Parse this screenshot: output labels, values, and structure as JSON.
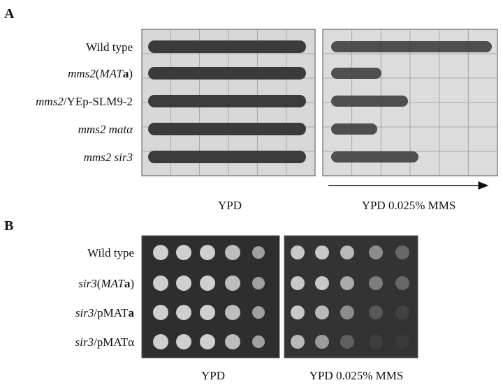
{
  "panel_a": {
    "label": "A",
    "rows": [
      [
        {
          "text": "Wild type",
          "style": "r"
        }
      ],
      [
        {
          "text": "mms2",
          "style": "i"
        },
        {
          "text": "(",
          "style": "r"
        },
        {
          "text": "MAT",
          "style": "i"
        },
        {
          "text": "a",
          "style": "b"
        },
        {
          "text": ")",
          "style": "r"
        }
      ],
      [
        {
          "text": "mms2",
          "style": "i"
        },
        {
          "text": "/YEp-SLM9-2",
          "style": "r"
        }
      ],
      [
        {
          "text": "mms2 matα",
          "style": "i"
        }
      ],
      [
        {
          "text": "mms2 sir3",
          "style": "i"
        }
      ]
    ],
    "plates": [
      "YPD",
      "YPD 0.025% MMS"
    ]
  },
  "panel_b": {
    "label": "B",
    "rows": [
      [
        {
          "text": "Wild type",
          "style": "r"
        }
      ],
      [
        {
          "text": "sir3",
          "style": "i"
        },
        {
          "text": "(",
          "style": "r"
        },
        {
          "text": "MAT",
          "style": "i"
        },
        {
          "text": "a",
          "style": "b"
        },
        {
          "text": ")",
          "style": "r"
        }
      ],
      [
        {
          "text": "sir3",
          "style": "i"
        },
        {
          "text": "/pMAT",
          "style": "r"
        },
        {
          "text": "a",
          "style": "b"
        }
      ],
      [
        {
          "text": "sir3",
          "style": "i"
        },
        {
          "text": "/pMATα",
          "style": "r"
        }
      ]
    ],
    "plates": [
      "YPD",
      "YPD 0.025% MMS"
    ]
  }
}
